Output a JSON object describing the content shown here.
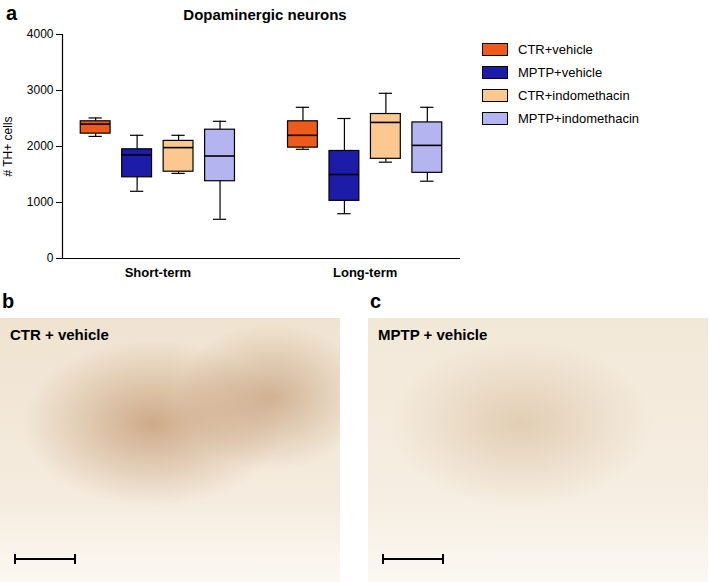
{
  "panel_label": "a",
  "chart_data": {
    "type": "box",
    "title": "Dopaminergic neurons",
    "y_label": "# TH+ cells",
    "categories": [
      "Short-term",
      "Long-term"
    ],
    "ylim": [
      0,
      4000
    ],
    "yticks": [
      0,
      1000,
      2000,
      3000,
      4000
    ],
    "legend": "right",
    "series": [
      {
        "name": "CTR+vehicle",
        "color": "#ee5a1c",
        "values": [
          {
            "min": 2180,
            "q1": 2230,
            "median": 2400,
            "q3": 2450,
            "max": 2510
          },
          {
            "min": 1950,
            "q1": 1980,
            "median": 2200,
            "q3": 2450,
            "max": 2700
          }
        ]
      },
      {
        "name": "MPTP+vehicle",
        "color": "#1c1ca8",
        "values": [
          {
            "min": 1200,
            "q1": 1450,
            "median": 1850,
            "q3": 1950,
            "max": 2200
          },
          {
            "min": 800,
            "q1": 1030,
            "median": 1500,
            "q3": 1920,
            "max": 2500
          }
        ]
      },
      {
        "name": "CTR+indomethacin",
        "color": "#fcc88f",
        "values": [
          {
            "min": 1520,
            "q1": 1550,
            "median": 1980,
            "q3": 2100,
            "max": 2200
          },
          {
            "min": 1720,
            "q1": 1780,
            "median": 2430,
            "q3": 2580,
            "max": 2950
          }
        ]
      },
      {
        "name": "MPTP+indomethacin",
        "color": "#b4b4f0",
        "values": [
          {
            "min": 700,
            "q1": 1380,
            "median": 1830,
            "q3": 2300,
            "max": 2450
          },
          {
            "min": 1380,
            "q1": 1530,
            "median": 2020,
            "q3": 2430,
            "max": 2700
          }
        ]
      }
    ]
  },
  "image_panels": [
    {
      "label": "b",
      "caption": "CTR + vehicle"
    },
    {
      "label": "c",
      "caption": "MPTP + vehicle"
    }
  ]
}
